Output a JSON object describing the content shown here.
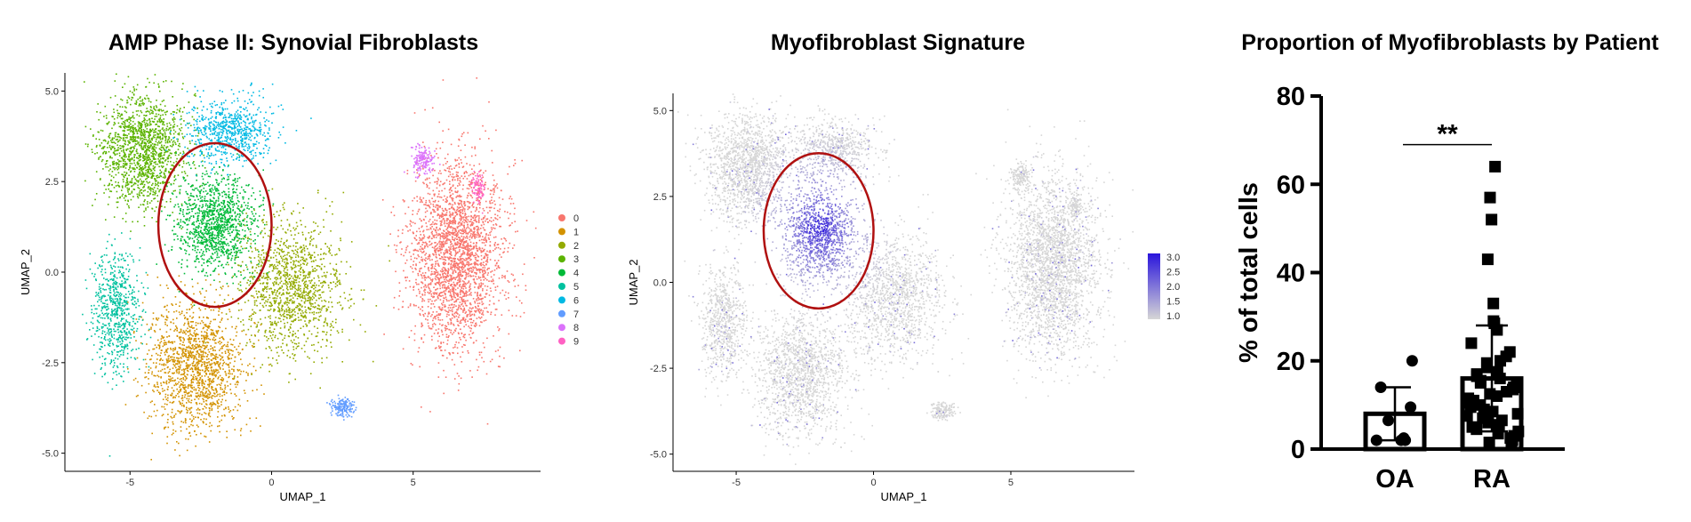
{
  "chart_data": [
    {
      "type": "scatter",
      "title": "AMP Phase II: Synovial Fibroblasts",
      "xlabel": "UMAP_1",
      "ylabel": "UMAP_2",
      "xlim": [
        -7.3,
        9.5
      ],
      "ylim": [
        -5.5,
        5.5
      ],
      "xticks": [
        -5,
        0,
        5
      ],
      "yticks": [
        -5.0,
        -2.5,
        0.0,
        2.5,
        5.0
      ],
      "xtick_labels": [
        "-5",
        "0",
        "5"
      ],
      "ytick_labels": [
        "-5.0",
        "-2.5",
        "0.0",
        "2.5",
        "5.0"
      ],
      "legend_position": "right",
      "grid": false,
      "clusters": [
        {
          "name": "0",
          "color": "#F8766D",
          "center": [
            6.5,
            0.5
          ],
          "spread": [
            1.1,
            1.7
          ],
          "n": 2600
        },
        {
          "name": "1",
          "color": "#D39200",
          "center": [
            -2.7,
            -2.6
          ],
          "spread": [
            1.1,
            1.2
          ],
          "n": 1500
        },
        {
          "name": "2",
          "color": "#93AA00",
          "center": [
            0.7,
            -0.4
          ],
          "spread": [
            1.2,
            1.2
          ],
          "n": 1300
        },
        {
          "name": "3",
          "color": "#5BB300",
          "center": [
            -4.6,
            3.4
          ],
          "spread": [
            1.0,
            1.0
          ],
          "n": 1500
        },
        {
          "name": "4",
          "color": "#00BA38",
          "center": [
            -2.0,
            1.4
          ],
          "spread": [
            0.9,
            0.9
          ],
          "n": 1200
        },
        {
          "name": "5",
          "color": "#00C19F",
          "center": [
            -5.5,
            -1.1
          ],
          "spread": [
            0.55,
            1.1
          ],
          "n": 700
        },
        {
          "name": "6",
          "color": "#00B9E3",
          "center": [
            -1.5,
            3.9
          ],
          "spread": [
            1.0,
            0.6
          ],
          "n": 700
        },
        {
          "name": "7",
          "color": "#619CFF",
          "center": [
            2.5,
            -3.7
          ],
          "spread": [
            0.3,
            0.17
          ],
          "n": 160
        },
        {
          "name": "8",
          "color": "#DB72FB",
          "center": [
            5.3,
            3.1
          ],
          "spread": [
            0.25,
            0.25
          ],
          "n": 160
        },
        {
          "name": "9",
          "color": "#FF61C3",
          "center": [
            7.3,
            2.3
          ],
          "spread": [
            0.15,
            0.28
          ],
          "n": 90
        }
      ],
      "annotation": {
        "shape": "circle",
        "center": [
          -2.0,
          1.3
        ],
        "radius_x": 2.0,
        "color": "#B01010"
      }
    },
    {
      "type": "scatter",
      "title": "Myofibroblast Signature",
      "xlabel": "UMAP_1",
      "ylabel": "UMAP_2",
      "xlim": [
        -7.3,
        9.5
      ],
      "ylim": [
        -5.5,
        5.5
      ],
      "xticks": [
        -5,
        0,
        5
      ],
      "yticks": [
        -5.0,
        -2.5,
        0.0,
        2.5,
        5.0
      ],
      "xtick_labels": [
        "-5",
        "0",
        "5"
      ],
      "ytick_labels": [
        "-5.0",
        "-2.5",
        "0.0",
        "2.5",
        "5.0"
      ],
      "color_scale": {
        "low_color": "#D6D6D6",
        "high_color": "#2A15DC",
        "min": 1.0,
        "max": 3.0,
        "ticks": [
          "3.0",
          "2.5",
          "2.0",
          "1.5",
          "1.0"
        ]
      },
      "high_expression_center": [
        -2.0,
        1.6
      ],
      "grid": false,
      "annotation": {
        "shape": "circle",
        "center": [
          -2.0,
          1.5
        ],
        "radius_x": 2.0,
        "color": "#B01010"
      }
    },
    {
      "type": "bar",
      "title": "Proportion of Myofibroblasts by Patient",
      "ylabel": "% of total cells",
      "xlabel": "",
      "categories": [
        "OA",
        "RA"
      ],
      "values": [
        8,
        16
      ],
      "error_sd": [
        6,
        12
      ],
      "ylim": [
        0,
        80
      ],
      "yticks": [
        0,
        20,
        40,
        60,
        80
      ],
      "ytick_labels": [
        "0",
        "20",
        "40",
        "60",
        "80"
      ],
      "significance": "**",
      "points": {
        "OA": [
          20,
          14,
          9.5,
          6.5,
          2,
          2,
          2,
          2.5
        ],
        "RA": [
          64,
          57,
          52,
          43,
          33,
          29,
          28.5,
          27,
          24,
          22,
          21,
          20,
          19.5,
          18.5,
          17.5,
          17,
          16.5,
          16,
          15.5,
          15,
          14.5,
          14,
          13.5,
          13,
          12.5,
          12,
          11.5,
          11,
          10.5,
          10,
          9.5,
          9,
          8.5,
          8,
          7.5,
          7,
          6.5,
          6,
          5.5,
          5,
          4.5,
          4,
          3.5,
          3,
          2.5,
          2,
          1.5,
          1
        ]
      },
      "point_markers": {
        "OA": "circle",
        "RA": "square"
      }
    }
  ]
}
